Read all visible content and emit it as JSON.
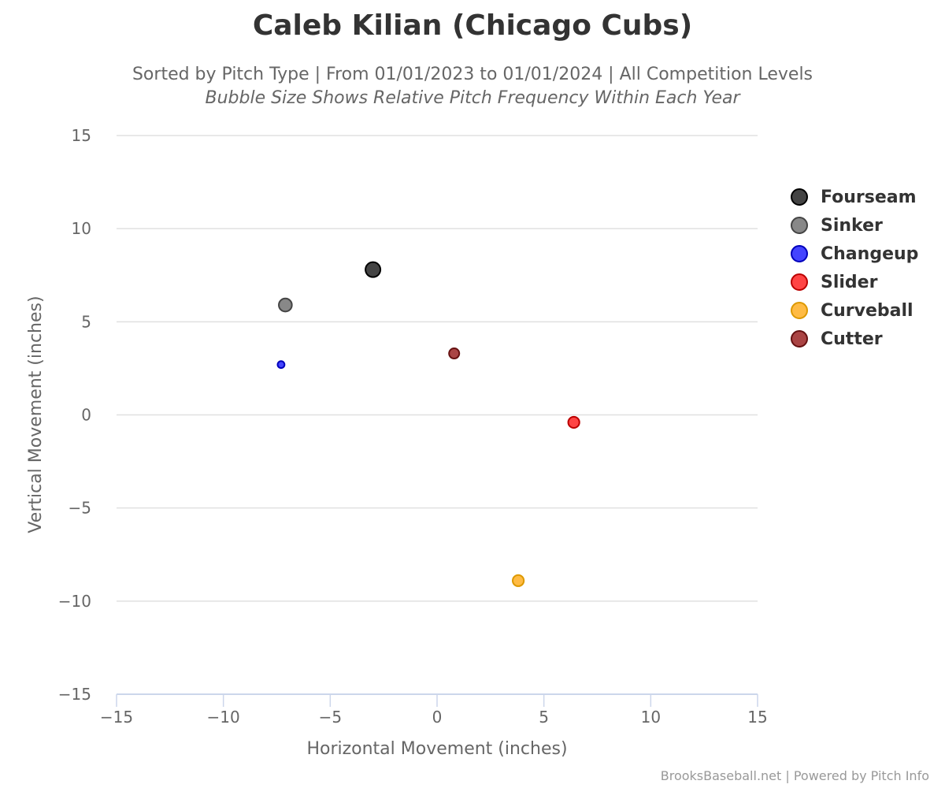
{
  "title": "Caleb Kilian (Chicago Cubs)",
  "subtitle": "Sorted by Pitch Type | From 01/01/2023 to 01/01/2024 | All Competition Levels",
  "subtitle2": "Bubble Size Shows Relative Pitch Frequency Within Each Year",
  "credits": "BrooksBaseball.net | Powered by Pitch Info",
  "chart_data": {
    "type": "scatter",
    "title": "Caleb Kilian (Chicago Cubs)",
    "xlabel": "Horizontal Movement (inches)",
    "ylabel": "Vertical Movement (inches)",
    "xlim": [
      -15,
      15
    ],
    "ylim": [
      -15,
      15
    ],
    "xticks": [
      -15,
      -10,
      -5,
      0,
      5,
      10,
      15
    ],
    "yticks": [
      -15,
      -10,
      -5,
      0,
      5,
      10,
      15
    ],
    "grid": "horizontal",
    "legend_position": "right",
    "series": [
      {
        "name": "Fourseam",
        "color": "#444444",
        "border": "#000000",
        "x": -3.0,
        "y": 7.8,
        "frequency": 1.0
      },
      {
        "name": "Sinker",
        "color": "#888888",
        "border": "#444444",
        "x": -7.1,
        "y": 5.9,
        "frequency": 0.8
      },
      {
        "name": "Changeup",
        "color": "#4444ff",
        "border": "#0000bb",
        "x": -7.3,
        "y": 2.7,
        "frequency": 0.15
      },
      {
        "name": "Slider",
        "color": "#ff4444",
        "border": "#bb0000",
        "x": 6.4,
        "y": -0.4,
        "frequency": 0.6
      },
      {
        "name": "Curveball",
        "color": "#ffbb44",
        "border": "#dd9900",
        "x": 3.8,
        "y": -8.9,
        "frequency": 0.6
      },
      {
        "name": "Cutter",
        "color": "#aa4444",
        "border": "#661111",
        "x": 0.8,
        "y": 3.3,
        "frequency": 0.5
      }
    ]
  }
}
